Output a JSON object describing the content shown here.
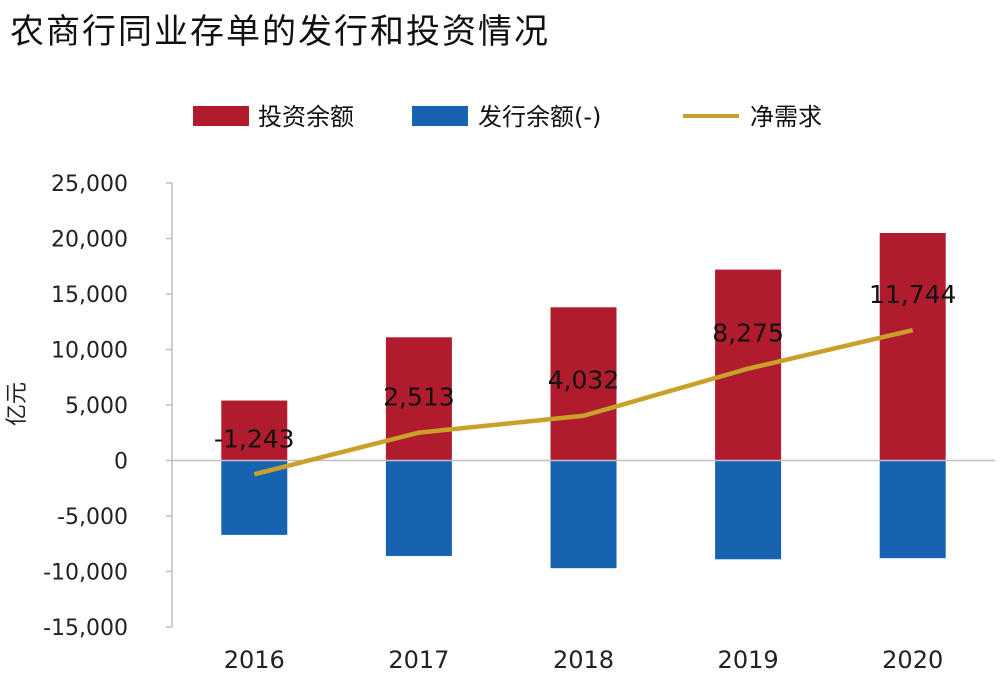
{
  "chart_data": {
    "type": "bar",
    "title": "农商行同业存单的发行和投资情况",
    "ylabel": "亿元",
    "xlabel": "",
    "categories": [
      "2016",
      "2017",
      "2018",
      "2019",
      "2020"
    ],
    "ylim": [
      -15000,
      25000
    ],
    "yticks": [
      25000,
      20000,
      15000,
      10000,
      5000,
      0,
      -5000,
      -10000,
      -15000
    ],
    "ytick_labels": [
      "25,000",
      "20,000",
      "15,000",
      "10,000",
      "5,000",
      "0",
      "-5,000",
      "-10,000",
      "-15,000"
    ],
    "grid": false,
    "legend_position": "top",
    "series": [
      {
        "name": "投资余额",
        "kind": "bar",
        "color": "#b01c2e",
        "values": [
          5400,
          11100,
          13800,
          17200,
          20500
        ]
      },
      {
        "name": "发行余额(-)",
        "kind": "bar",
        "color": "#1762b1",
        "values": [
          -6700,
          -8600,
          -9700,
          -8900,
          -8800
        ]
      },
      {
        "name": "净需求",
        "kind": "line",
        "color": "#c9a12a",
        "values": [
          -1243,
          2513,
          4032,
          8275,
          11744
        ],
        "data_labels": [
          "-1,243",
          "2,513",
          "4,032",
          "8,275",
          "11,744"
        ]
      }
    ]
  }
}
